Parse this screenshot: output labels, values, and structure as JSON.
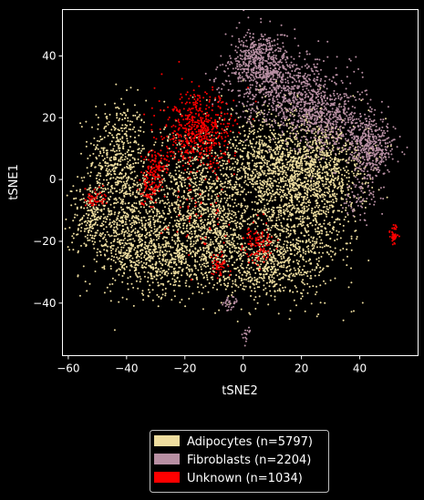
{
  "chart_data": {
    "type": "scatter",
    "title": "",
    "xlabel": "tSNE2",
    "ylabel": "tSNE1",
    "xlim": [
      -62,
      60
    ],
    "ylim": [
      -57,
      55
    ],
    "xticks": [
      -60,
      -40,
      -20,
      0,
      20,
      40
    ],
    "yticks": [
      -40,
      -20,
      0,
      20,
      40
    ],
    "grid": false,
    "legend_position": "bottom-center",
    "series": [
      {
        "name": "Adipocytes (n=5797)",
        "color": "#eedd9f",
        "clusters": [
          {
            "cx": -43,
            "cy": 8,
            "sx": 5,
            "sy": 9,
            "n": 420
          },
          {
            "cx": -40,
            "cy": -14,
            "sx": 8,
            "sy": 9,
            "n": 680
          },
          {
            "cx": -27,
            "cy": -25,
            "sx": 9,
            "sy": 6,
            "n": 560
          },
          {
            "cx": -18,
            "cy": -5,
            "sx": 8,
            "sy": 11,
            "n": 700
          },
          {
            "cx": -8,
            "cy": -18,
            "sx": 7,
            "sy": 9,
            "n": 520
          },
          {
            "cx": 8,
            "cy": 5,
            "sx": 9,
            "sy": 9,
            "n": 820
          },
          {
            "cx": 20,
            "cy": -10,
            "sx": 9,
            "sy": 12,
            "n": 980
          },
          {
            "cx": 27,
            "cy": 5,
            "sx": 8,
            "sy": 8,
            "n": 560
          },
          {
            "cx": 8,
            "cy": -28,
            "sx": 8,
            "sy": 5,
            "n": 420
          },
          {
            "cx": -52,
            "cy": -12,
            "sx": 3,
            "sy": 5,
            "n": 137
          }
        ]
      },
      {
        "name": "Fibroblasts (n=2204)",
        "color": "#b88fa3",
        "clusters": [
          {
            "cx": 6,
            "cy": 38,
            "sx": 5,
            "sy": 5,
            "n": 520
          },
          {
            "cx": 16,
            "cy": 28,
            "sx": 8,
            "sy": 6,
            "n": 620
          },
          {
            "cx": 30,
            "cy": 20,
            "sx": 7,
            "sy": 6,
            "n": 520
          },
          {
            "cx": 44,
            "cy": 10,
            "sx": 4,
            "sy": 5,
            "n": 400
          },
          {
            "cx": 40,
            "cy": -6,
            "sx": 3,
            "sy": 3,
            "n": 64
          },
          {
            "cx": -5,
            "cy": -40,
            "sx": 1.5,
            "sy": 1.5,
            "n": 30
          },
          {
            "cx": 1,
            "cy": -51,
            "sx": 0.8,
            "sy": 1.5,
            "n": 15
          },
          {
            "cx": -7,
            "cy": 32,
            "sx": 3,
            "sy": 4,
            "n": 35
          }
        ]
      },
      {
        "name": "Unknown (n=1034)",
        "color": "#ff0000",
        "clusters": [
          {
            "cx": -15,
            "cy": 15,
            "sx": 6,
            "sy": 6,
            "n": 560
          },
          {
            "cx": -30,
            "cy": 5,
            "sx": 2,
            "sy": 3,
            "n": 90
          },
          {
            "cx": -32,
            "cy": -2,
            "sx": 2,
            "sy": 3,
            "n": 80
          },
          {
            "cx": 5,
            "cy": -21,
            "sx": 2.5,
            "sy": 3,
            "n": 110
          },
          {
            "cx": -8,
            "cy": -28,
            "sx": 1.5,
            "sy": 2,
            "n": 50
          },
          {
            "cx": -51,
            "cy": -6,
            "sx": 2,
            "sy": 2,
            "n": 50
          },
          {
            "cx": 52,
            "cy": -18,
            "sx": 0.8,
            "sy": 1.5,
            "n": 40
          },
          {
            "cx": -16,
            "cy": -10,
            "sx": 6,
            "sy": 8,
            "n": 54
          }
        ]
      }
    ]
  }
}
